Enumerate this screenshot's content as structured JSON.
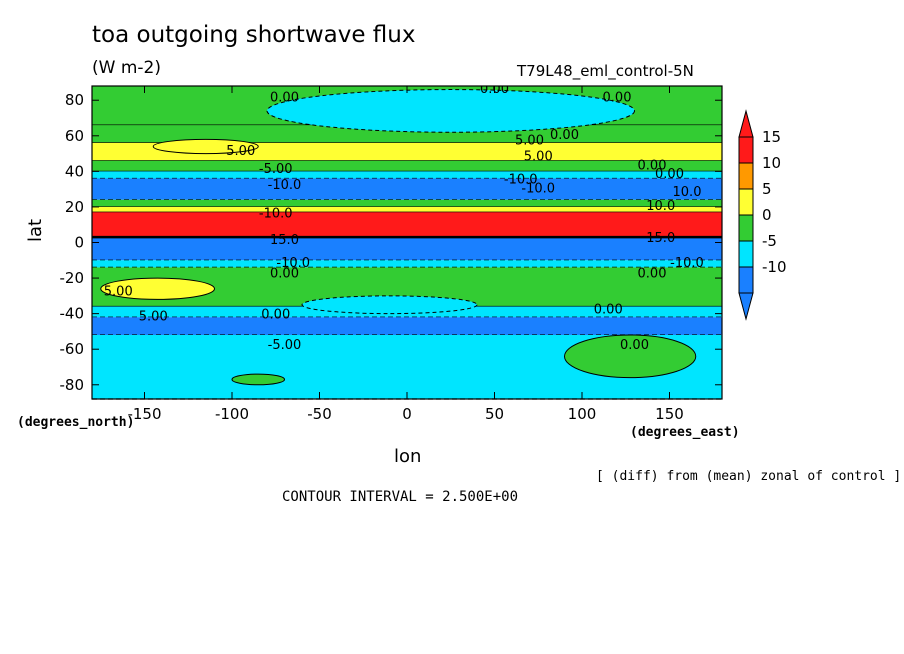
{
  "chart_data": {
    "type": "heatmap",
    "title": "toa outgoing shortwave flux",
    "units": "(W m-2)",
    "run_label": "T79L48_eml_control-5N",
    "xlabel": "lon",
    "ylabel": "lat",
    "x_unit_label": "(degrees_east)",
    "y_unit_label": "(degrees_north)",
    "note": "[ (diff) from (mean) zonal of control ]",
    "contour_interval_text": "CONTOUR INTERVAL = 2.500E+00",
    "xlim": [
      -180,
      180
    ],
    "ylim": [
      -88,
      88
    ],
    "x_ticks": [
      -150,
      -100,
      -50,
      0,
      50,
      100,
      150
    ],
    "x_tick_labels": [
      "-150",
      "-100",
      "-50",
      "0",
      "50",
      "100",
      "150"
    ],
    "y_ticks": [
      -80,
      -60,
      -40,
      -20,
      0,
      20,
      40,
      60,
      80
    ],
    "y_tick_labels": [
      "-80",
      "-60",
      "-40",
      "-20",
      "0",
      "20",
      "40",
      "60",
      "80"
    ],
    "colorbar": {
      "levels": [
        15,
        10,
        5,
        0,
        -5,
        -10
      ],
      "labels": [
        "15",
        "10",
        "5",
        "0",
        "-5",
        "-10"
      ],
      "colors": [
        "#ff1a1a",
        "#ff9900",
        "#ffff33",
        "#33cc33",
        "#00e5ff",
        "#1a80ff"
      ],
      "top_triangle_color": "#ff1a1a",
      "bottom_triangle_color": "#1a80ff"
    },
    "lat_bands": [
      {
        "lat_min": 66,
        "lat_max": 88,
        "value": 0,
        "color": "#33cc33"
      },
      {
        "lat_min": 56,
        "lat_max": 66,
        "value": 0,
        "color": "#33cc33"
      },
      {
        "lat_min": 46,
        "lat_max": 56,
        "value": 5,
        "color": "#ffff33"
      },
      {
        "lat_min": 40,
        "lat_max": 46,
        "value": 0,
        "color": "#33cc33"
      },
      {
        "lat_min": 36,
        "lat_max": 40,
        "value": -5,
        "color": "#00e5ff"
      },
      {
        "lat_min": 24,
        "lat_max": 36,
        "value": -10,
        "color": "#1a80ff"
      },
      {
        "lat_min": 20,
        "lat_max": 24,
        "value": 0,
        "color": "#33cc33"
      },
      {
        "lat_min": 17,
        "lat_max": 20,
        "value": 5,
        "color": "#ffff33"
      },
      {
        "lat_min": 3,
        "lat_max": 17,
        "value": 15,
        "color": "#ff1a1a"
      },
      {
        "lat_min": -10,
        "lat_max": 3,
        "value": -10,
        "color": "#1a80ff"
      },
      {
        "lat_min": -14,
        "lat_max": -10,
        "value": -5,
        "color": "#00e5ff"
      },
      {
        "lat_min": -36,
        "lat_max": -14,
        "value": 0,
        "color": "#33cc33"
      },
      {
        "lat_min": -42,
        "lat_max": -36,
        "value": -5,
        "color": "#00e5ff"
      },
      {
        "lat_min": -52,
        "lat_max": -42,
        "value": -10,
        "color": "#1a80ff"
      },
      {
        "lat_min": -88,
        "lat_max": -52,
        "value": -5,
        "color": "#00e5ff"
      }
    ],
    "patches": [
      {
        "lon_min": -80,
        "lon_max": 130,
        "lat_min": 62,
        "lat_max": 86,
        "value": -5,
        "color": "#00e5ff"
      },
      {
        "lon_min": -175,
        "lon_max": -110,
        "lat_min": -32,
        "lat_max": -20,
        "value": 5,
        "color": "#ffff33"
      },
      {
        "lon_min": -60,
        "lon_max": 40,
        "lat_min": -40,
        "lat_max": -30,
        "value": -5,
        "color": "#00e5ff"
      },
      {
        "lon_min": 90,
        "lon_max": 165,
        "lat_min": -76,
        "lat_max": -52,
        "value": 0,
        "color": "#33cc33"
      },
      {
        "lon_min": -100,
        "lon_max": -70,
        "lat_min": -80,
        "lat_max": -74,
        "value": 0,
        "color": "#33cc33"
      },
      {
        "lon_min": -145,
        "lon_max": -85,
        "lat_min": 50,
        "lat_max": 58,
        "value": 5,
        "color": "#ffff33"
      }
    ],
    "contour_labels": [
      {
        "text": "0.00",
        "lon": -70,
        "lat": 82
      },
      {
        "text": "0.00",
        "lon": 50,
        "lat": 87
      },
      {
        "text": "0.00",
        "lon": 120,
        "lat": 82
      },
      {
        "text": "0.00",
        "lon": 90,
        "lat": 61
      },
      {
        "text": "5.00",
        "lon": 70,
        "lat": 58
      },
      {
        "text": "5.00",
        "lon": -95,
        "lat": 52
      },
      {
        "text": "5.00",
        "lon": 75,
        "lat": 49
      },
      {
        "text": "-5.00",
        "lon": -75,
        "lat": 42
      },
      {
        "text": "-10.0",
        "lon": -70,
        "lat": 33
      },
      {
        "text": "-10.0",
        "lon": 65,
        "lat": 36
      },
      {
        "text": "-10.0",
        "lon": 75,
        "lat": 31
      },
      {
        "text": "0.00",
        "lon": 140,
        "lat": 44
      },
      {
        "text": "0.00",
        "lon": 150,
        "lat": 39
      },
      {
        "text": "10.0",
        "lon": 160,
        "lat": 29
      },
      {
        "text": "10.0",
        "lon": 145,
        "lat": 21
      },
      {
        "text": "-10.0",
        "lon": -75,
        "lat": 17
      },
      {
        "text": "15.0",
        "lon": -70,
        "lat": 2
      },
      {
        "text": "15.0",
        "lon": 145,
        "lat": 3
      },
      {
        "text": "-10.0",
        "lon": -65,
        "lat": -11
      },
      {
        "text": "0.00",
        "lon": -70,
        "lat": -17
      },
      {
        "text": "-10.0",
        "lon": 160,
        "lat": -11
      },
      {
        "text": "0.00",
        "lon": 140,
        "lat": -17
      },
      {
        "text": "5.00",
        "lon": -165,
        "lat": -27
      },
      {
        "text": "5.00",
        "lon": -145,
        "lat": -41
      },
      {
        "text": "0.00",
        "lon": -75,
        "lat": -40
      },
      {
        "text": "0.00",
        "lon": 115,
        "lat": -37
      },
      {
        "text": "-5.00",
        "lon": -70,
        "lat": -57
      },
      {
        "text": "0.00",
        "lon": 130,
        "lat": -57
      }
    ]
  }
}
